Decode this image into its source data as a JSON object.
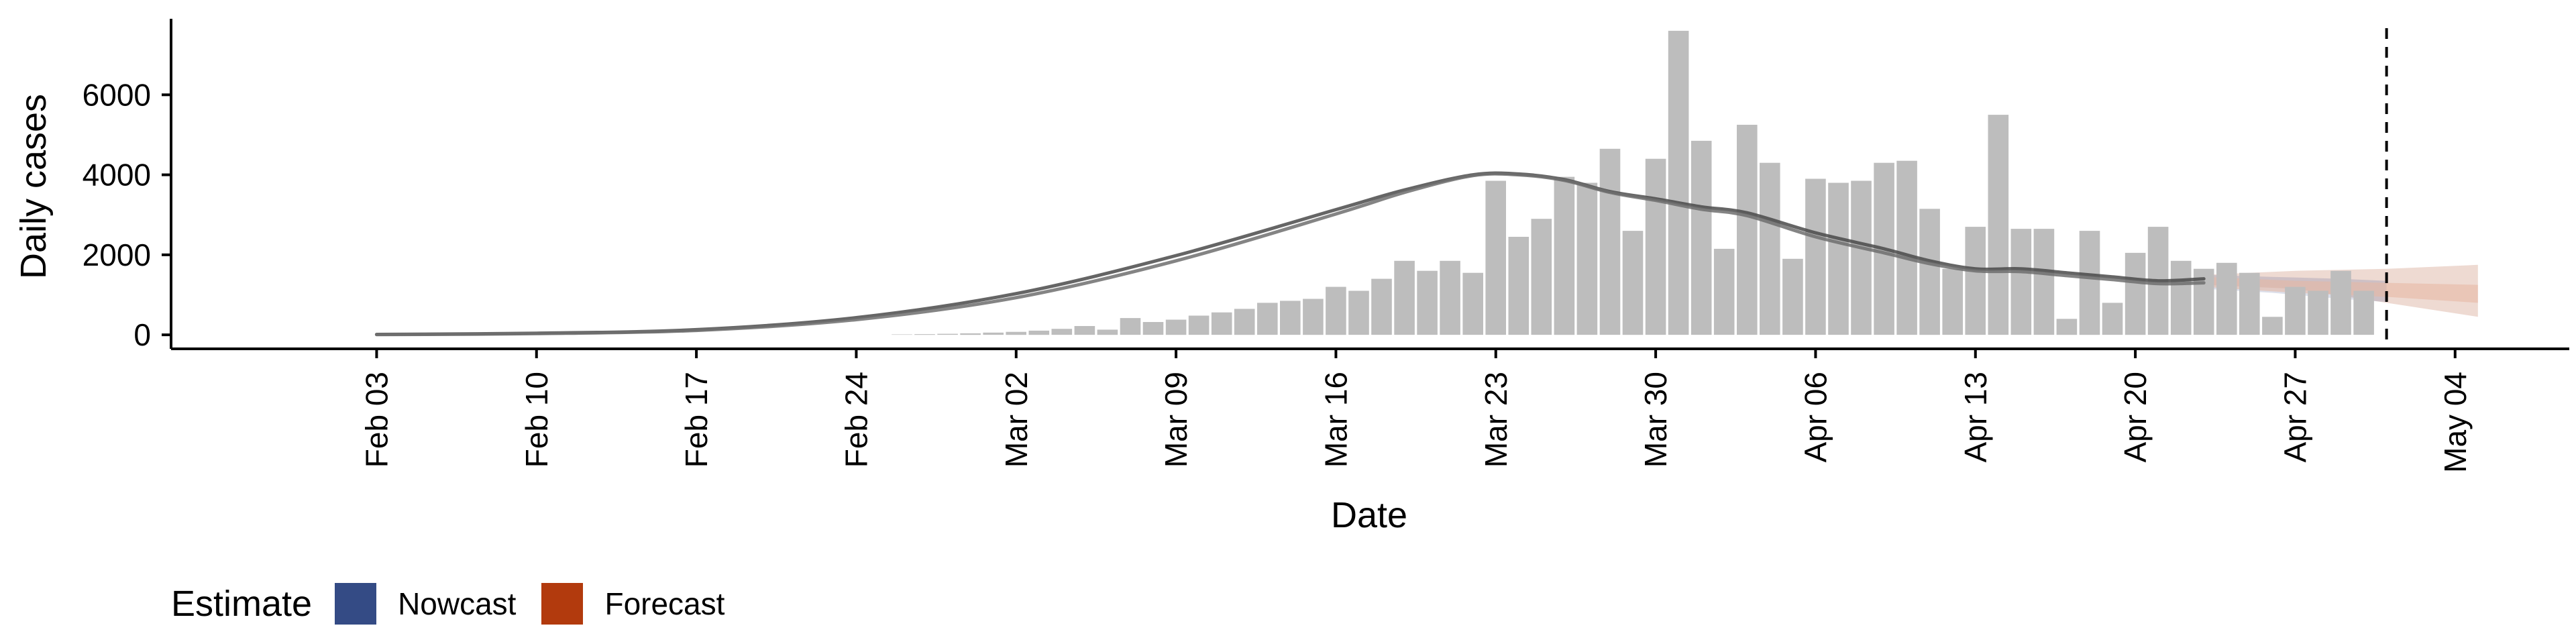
{
  "chart_data": {
    "type": "bar",
    "xlabel": "Date",
    "ylabel": "Daily cases",
    "x_axis": {
      "type": "date",
      "range": [
        "2020-01-25",
        "2020-05-09"
      ],
      "ticks": [
        {
          "date": "2020-02-03",
          "label": "Feb 03"
        },
        {
          "date": "2020-02-10",
          "label": "Feb 10"
        },
        {
          "date": "2020-02-17",
          "label": "Feb 17"
        },
        {
          "date": "2020-02-24",
          "label": "Feb 24"
        },
        {
          "date": "2020-03-02",
          "label": "Mar 02"
        },
        {
          "date": "2020-03-09",
          "label": "Mar 09"
        },
        {
          "date": "2020-03-16",
          "label": "Mar 16"
        },
        {
          "date": "2020-03-23",
          "label": "Mar 23"
        },
        {
          "date": "2020-03-30",
          "label": "Mar 30"
        },
        {
          "date": "2020-04-06",
          "label": "Apr 06"
        },
        {
          "date": "2020-04-13",
          "label": "Apr 13"
        },
        {
          "date": "2020-04-20",
          "label": "Apr 20"
        },
        {
          "date": "2020-04-27",
          "label": "Apr 27"
        },
        {
          "date": "2020-05-04",
          "label": "May 04"
        }
      ]
    },
    "y_axis": {
      "range": [
        -350,
        7900
      ],
      "ticks": [
        0,
        2000,
        4000,
        6000
      ]
    },
    "grid": false,
    "bars": {
      "name": "Daily cases",
      "color": "#bdbdbd",
      "start_date": "2020-02-26",
      "values": [
        10,
        18,
        25,
        38,
        55,
        75,
        105,
        150,
        220,
        130,
        420,
        320,
        380,
        480,
        560,
        650,
        800,
        850,
        900,
        1200,
        1100,
        1400,
        1850,
        1600,
        1850,
        1550,
        3850,
        2450,
        2900,
        3950,
        3800,
        4650,
        2600,
        4400,
        7600,
        4850,
        2150,
        5250,
        4300,
        1900,
        3900,
        3800,
        3850,
        4300,
        4350,
        3150,
        1650,
        2700,
        5500,
        2650,
        2650,
        400,
        2600,
        800,
        2050,
        2700,
        1850,
        1650,
        1800,
        1550,
        450,
        1200,
        1100,
        1600,
        1100
      ]
    },
    "curves": [
      {
        "color": "#4a4a4a",
        "points": [
          [
            "2020-02-03",
            10
          ],
          [
            "2020-02-10",
            40
          ],
          [
            "2020-02-17",
            130
          ],
          [
            "2020-02-24",
            430
          ],
          [
            "2020-03-02",
            1030
          ],
          [
            "2020-03-09",
            1980
          ],
          [
            "2020-03-16",
            3130
          ],
          [
            "2020-03-19",
            3620
          ],
          [
            "2020-03-22",
            4000
          ],
          [
            "2020-03-24",
            4020
          ],
          [
            "2020-03-26",
            3880
          ],
          [
            "2020-03-28",
            3580
          ],
          [
            "2020-03-30",
            3400
          ],
          [
            "2020-04-01",
            3200
          ],
          [
            "2020-04-03",
            3050
          ],
          [
            "2020-04-06",
            2550
          ],
          [
            "2020-04-09",
            2150
          ],
          [
            "2020-04-11",
            1850
          ],
          [
            "2020-04-13",
            1650
          ],
          [
            "2020-04-15",
            1650
          ],
          [
            "2020-04-17",
            1550
          ],
          [
            "2020-04-19",
            1450
          ],
          [
            "2020-04-21",
            1350
          ],
          [
            "2020-04-23",
            1400
          ]
        ]
      },
      {
        "color": "#6e6e6e",
        "points": [
          [
            "2020-02-03",
            5
          ],
          [
            "2020-02-10",
            30
          ],
          [
            "2020-02-17",
            110
          ],
          [
            "2020-02-24",
            380
          ],
          [
            "2020-03-02",
            930
          ],
          [
            "2020-03-09",
            1850
          ],
          [
            "2020-03-16",
            3020
          ],
          [
            "2020-03-19",
            3560
          ],
          [
            "2020-03-22",
            3980
          ],
          [
            "2020-03-24",
            4000
          ],
          [
            "2020-03-26",
            3860
          ],
          [
            "2020-03-28",
            3560
          ],
          [
            "2020-03-30",
            3360
          ],
          [
            "2020-04-01",
            3140
          ],
          [
            "2020-04-03",
            2980
          ],
          [
            "2020-04-06",
            2450
          ],
          [
            "2020-04-09",
            2050
          ],
          [
            "2020-04-11",
            1780
          ],
          [
            "2020-04-13",
            1600
          ],
          [
            "2020-04-15",
            1580
          ],
          [
            "2020-04-17",
            1480
          ],
          [
            "2020-04-19",
            1380
          ],
          [
            "2020-04-21",
            1280
          ],
          [
            "2020-04-23",
            1300
          ]
        ]
      }
    ],
    "nowcast_band": {
      "color": "#3c4f8a",
      "points": [
        [
          "2020-04-23",
          1150,
          1500
        ],
        [
          "2020-04-26",
          1050,
          1450
        ],
        [
          "2020-04-29",
          900,
          1400
        ],
        [
          "2020-05-01",
          820,
          1350
        ]
      ]
    },
    "forecast_band_outer": {
      "color": "#e2c2b4",
      "points": [
        [
          "2020-04-23",
          1250,
          1500
        ],
        [
          "2020-04-27",
          1150,
          1600
        ],
        [
          "2020-05-01",
          800,
          1650
        ],
        [
          "2020-05-05",
          450,
          1750
        ]
      ]
    },
    "forecast_band_inner": {
      "color": "#e7b7a0",
      "points": [
        [
          "2020-04-23",
          1200,
          1450
        ],
        [
          "2020-04-27",
          1050,
          1350
        ],
        [
          "2020-05-01",
          950,
          1300
        ],
        [
          "2020-05-05",
          800,
          1250
        ]
      ]
    },
    "vline": {
      "date": "2020-05-01",
      "style": "dashed"
    },
    "legend": {
      "placement": "bottom",
      "title": "Estimate",
      "entries": [
        {
          "label": "Nowcast",
          "color": "#344b85"
        },
        {
          "label": "Forecast",
          "color": "#b23a0d"
        }
      ]
    }
  }
}
